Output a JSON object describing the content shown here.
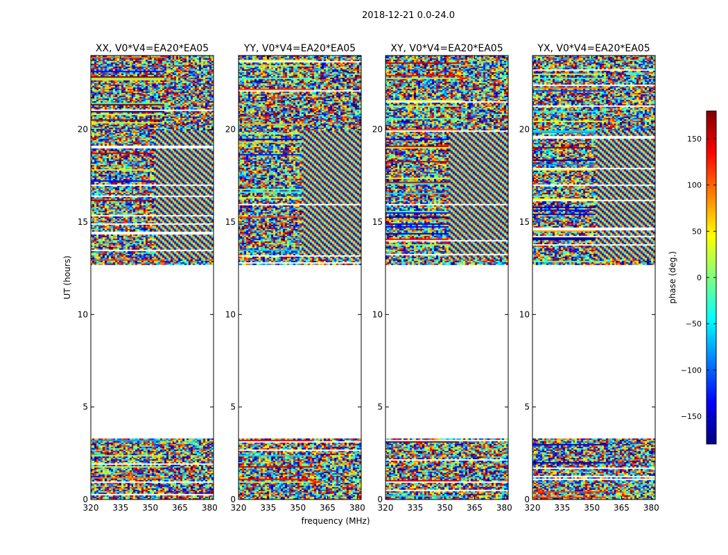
{
  "chart_data": {
    "type": "heatmap",
    "suptitle": "2018-12-21 0.0-24.0",
    "xlabel": "frequency (MHz)",
    "ylabel": "UT (hours)",
    "xlim": [
      320,
      382
    ],
    "ylim": [
      0,
      24
    ],
    "x_ticks": [
      320,
      335,
      350,
      365,
      380
    ],
    "y_ticks": [
      0,
      5,
      10,
      15,
      20
    ],
    "panels": [
      {
        "title": "XX, V0*V4=EA20*EA05"
      },
      {
        "title": "YY, V0*V4=EA20*EA05"
      },
      {
        "title": "XY, V0*V4=EA20*EA05"
      },
      {
        "title": "YX, V0*V4=EA20*EA05"
      }
    ],
    "data_ranges_hours": [
      [
        0.0,
        3.3
      ],
      [
        12.7,
        24.0
      ]
    ],
    "flagged_gap_hours": [
      3.3,
      12.7
    ],
    "value_description": "phase noise with fringe patterns near 13-20 h at upper frequencies",
    "colorbar": {
      "label": "phase (deg.)",
      "range": [
        -180,
        180
      ],
      "ticks": [
        -150,
        -100,
        -50,
        0,
        50,
        100,
        150
      ],
      "tick_labels": [
        "−150",
        "−100",
        "−50",
        "0",
        "50",
        "100",
        "150"
      ],
      "colormap": "jet"
    }
  }
}
